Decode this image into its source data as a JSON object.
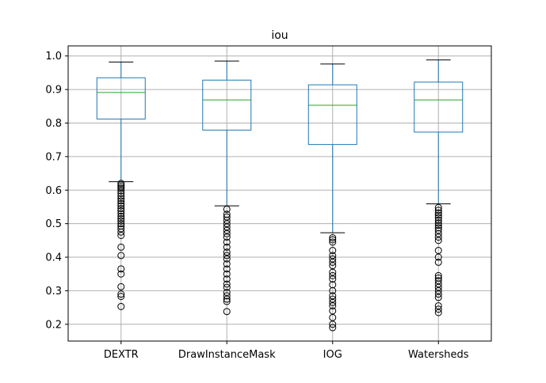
{
  "chart_data": {
    "type": "box",
    "title": "iou",
    "xlabel": "",
    "ylabel": "",
    "ylim": [
      0.15,
      1.03
    ],
    "yticks": [
      0.2,
      0.3,
      0.4,
      0.5,
      0.6,
      0.7,
      0.8,
      0.9,
      1.0
    ],
    "ytick_labels": [
      "0.2",
      "0.3",
      "0.4",
      "0.5",
      "0.6",
      "0.7",
      "0.8",
      "0.9",
      "1.0"
    ],
    "grid": true,
    "categories": [
      "DEXTR",
      "DrawInstanceMask",
      "IOG",
      "Watersheds"
    ],
    "boxes": [
      {
        "label": "DEXTR",
        "whisker_low": 0.625,
        "q1": 0.812,
        "median": 0.891,
        "q3": 0.935,
        "whisker_high": 0.982,
        "outliers": [
          0.62,
          0.615,
          0.61,
          0.605,
          0.598,
          0.59,
          0.582,
          0.575,
          0.568,
          0.56,
          0.553,
          0.545,
          0.538,
          0.53,
          0.522,
          0.515,
          0.508,
          0.5,
          0.493,
          0.485,
          0.475,
          0.465,
          0.43,
          0.405,
          0.365,
          0.35,
          0.312,
          0.29,
          0.283,
          0.253
        ]
      },
      {
        "label": "DrawInstanceMask",
        "whisker_low": 0.553,
        "q1": 0.779,
        "median": 0.869,
        "q3": 0.928,
        "whisker_high": 0.985,
        "outliers": [
          0.543,
          0.528,
          0.52,
          0.51,
          0.5,
          0.49,
          0.48,
          0.47,
          0.46,
          0.445,
          0.43,
          0.415,
          0.405,
          0.395,
          0.38,
          0.365,
          0.35,
          0.335,
          0.32,
          0.31,
          0.295,
          0.285,
          0.275,
          0.268,
          0.238
        ]
      },
      {
        "label": "IOG",
        "whisker_low": 0.473,
        "q1": 0.736,
        "median": 0.853,
        "q3": 0.914,
        "whisker_high": 0.976,
        "outliers": [
          0.458,
          0.452,
          0.445,
          0.42,
          0.405,
          0.395,
          0.385,
          0.375,
          0.355,
          0.345,
          0.335,
          0.318,
          0.3,
          0.285,
          0.275,
          0.265,
          0.255,
          0.24,
          0.22,
          0.2,
          0.19
        ]
      },
      {
        "label": "Watersheds",
        "whisker_low": 0.559,
        "q1": 0.773,
        "median": 0.869,
        "q3": 0.922,
        "whisker_high": 0.988,
        "outliers": [
          0.548,
          0.54,
          0.532,
          0.525,
          0.518,
          0.51,
          0.502,
          0.495,
          0.488,
          0.48,
          0.47,
          0.46,
          0.45,
          0.42,
          0.4,
          0.385,
          0.345,
          0.338,
          0.33,
          0.32,
          0.31,
          0.3,
          0.29,
          0.28,
          0.255,
          0.245,
          0.235
        ]
      }
    ]
  },
  "colors": {
    "box": "#1f77b4",
    "median": "#2ca02c",
    "whisker_cap": "#000000",
    "outlier": "#000000",
    "grid": "#b0b0b0",
    "axes": "#000000"
  }
}
